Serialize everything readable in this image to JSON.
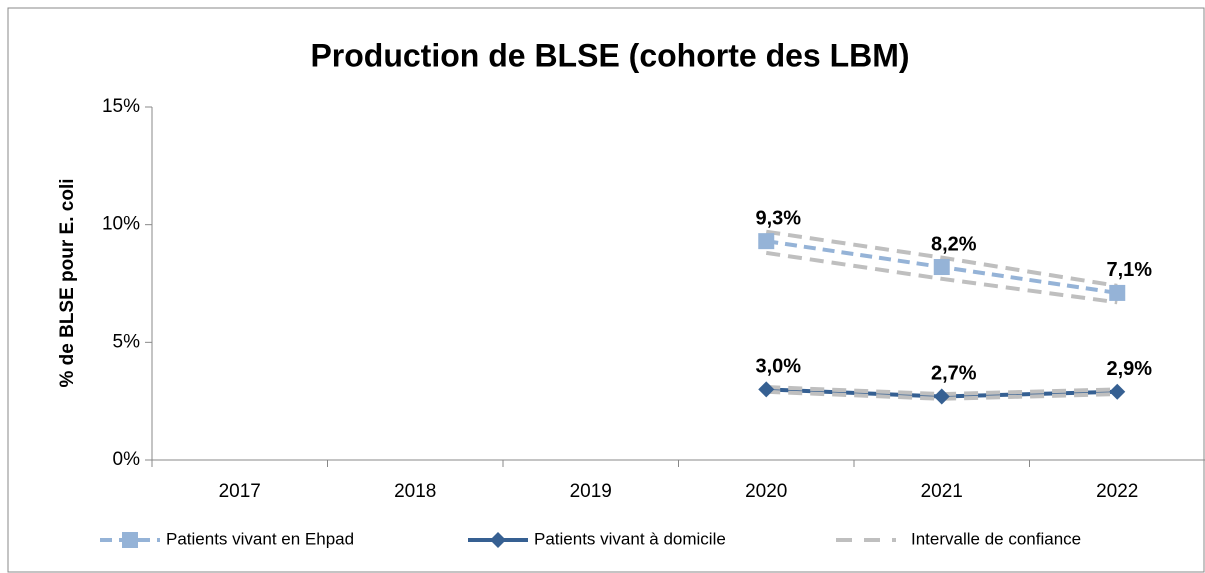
{
  "chart_data": {
    "type": "line",
    "title": "Production de BLSE (cohorte des LBM)",
    "y_label": "% de BLSE pour E. coli",
    "categories": [
      "2017",
      "2018",
      "2019",
      "2020",
      "2021",
      "2022"
    ],
    "ylim": [
      0,
      15
    ],
    "yticks": [
      {
        "value": 0,
        "label": "0%"
      },
      {
        "value": 5,
        "label": "5%"
      },
      {
        "value": 10,
        "label": "10%"
      },
      {
        "value": 15,
        "label": "15%"
      }
    ],
    "grid": false,
    "legend": "bottom",
    "series": [
      {
        "name": "Patients vivant en Ehpad",
        "color": "#95b3d7",
        "marker": "square",
        "dashed": true,
        "values": [
          null,
          null,
          null,
          9.3,
          8.2,
          7.1
        ],
        "value_labels": [
          null,
          null,
          null,
          "9,3%",
          "8,2%",
          "7,1%"
        ]
      },
      {
        "name": "Patients vivant à domicile",
        "color": "#366092",
        "marker": "diamond",
        "dashed": false,
        "values": [
          null,
          null,
          null,
          3.0,
          2.7,
          2.9
        ],
        "value_labels": [
          null,
          null,
          null,
          "3,0%",
          "2,7%",
          "2,9%"
        ]
      },
      {
        "name": "Intervalle de confiance",
        "color": "#bfbfbf",
        "dashed": true,
        "lines": [
          {
            "values": [
              null,
              null,
              null,
              9.7,
              8.6,
              7.4
            ]
          },
          {
            "values": [
              null,
              null,
              null,
              8.8,
              7.7,
              6.7
            ]
          },
          {
            "values": [
              null,
              null,
              null,
              3.1,
              2.8,
              3.0
            ]
          },
          {
            "values": [
              null,
              null,
              null,
              2.9,
              2.6,
              2.8
            ]
          }
        ]
      }
    ]
  }
}
